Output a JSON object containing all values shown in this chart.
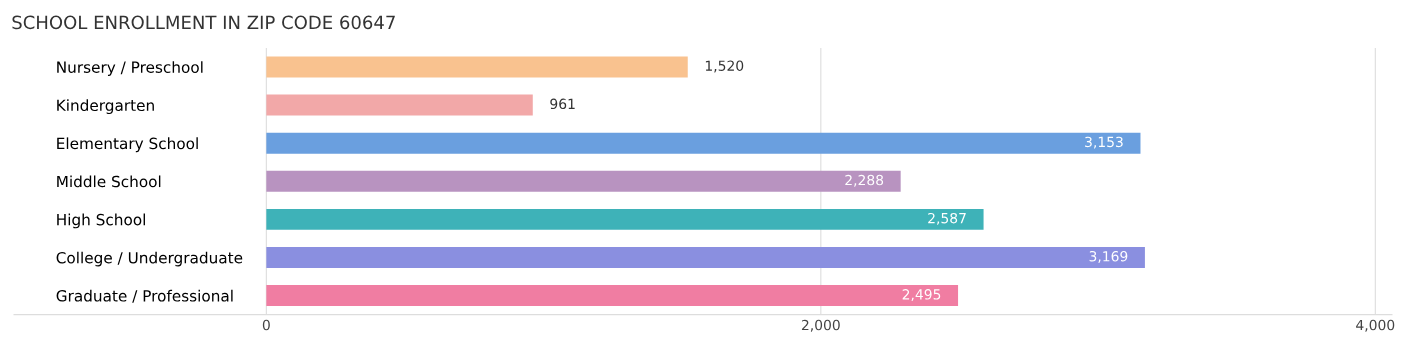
{
  "chart_data": {
    "type": "bar",
    "orientation": "horizontal",
    "title": "SCHOOL ENROLLMENT IN ZIP CODE 60647",
    "categories": [
      "Nursery / Preschool",
      "Kindergarten",
      "Elementary School",
      "Middle School",
      "High School",
      "College / Undergraduate",
      "Graduate / Professional"
    ],
    "values": [
      1520,
      961,
      3153,
      2288,
      2587,
      3169,
      2495
    ],
    "colors": [
      "#f9c28f",
      "#f2a8a8",
      "#6a9fdf",
      "#b893c0",
      "#3eb2b8",
      "#8a8fe0",
      "#f07da2"
    ],
    "xlim": [
      -910,
      4060
    ],
    "xticks": [
      0,
      {
        "value": 2000,
        "label": "2,000"
      },
      {
        "value": 4000,
        "label": "4,000"
      }
    ],
    "grid": "x",
    "value_labels": [
      "1,520",
      "961",
      "3,153",
      "2,288",
      "2,587",
      "3,169",
      "2,495"
    ]
  }
}
